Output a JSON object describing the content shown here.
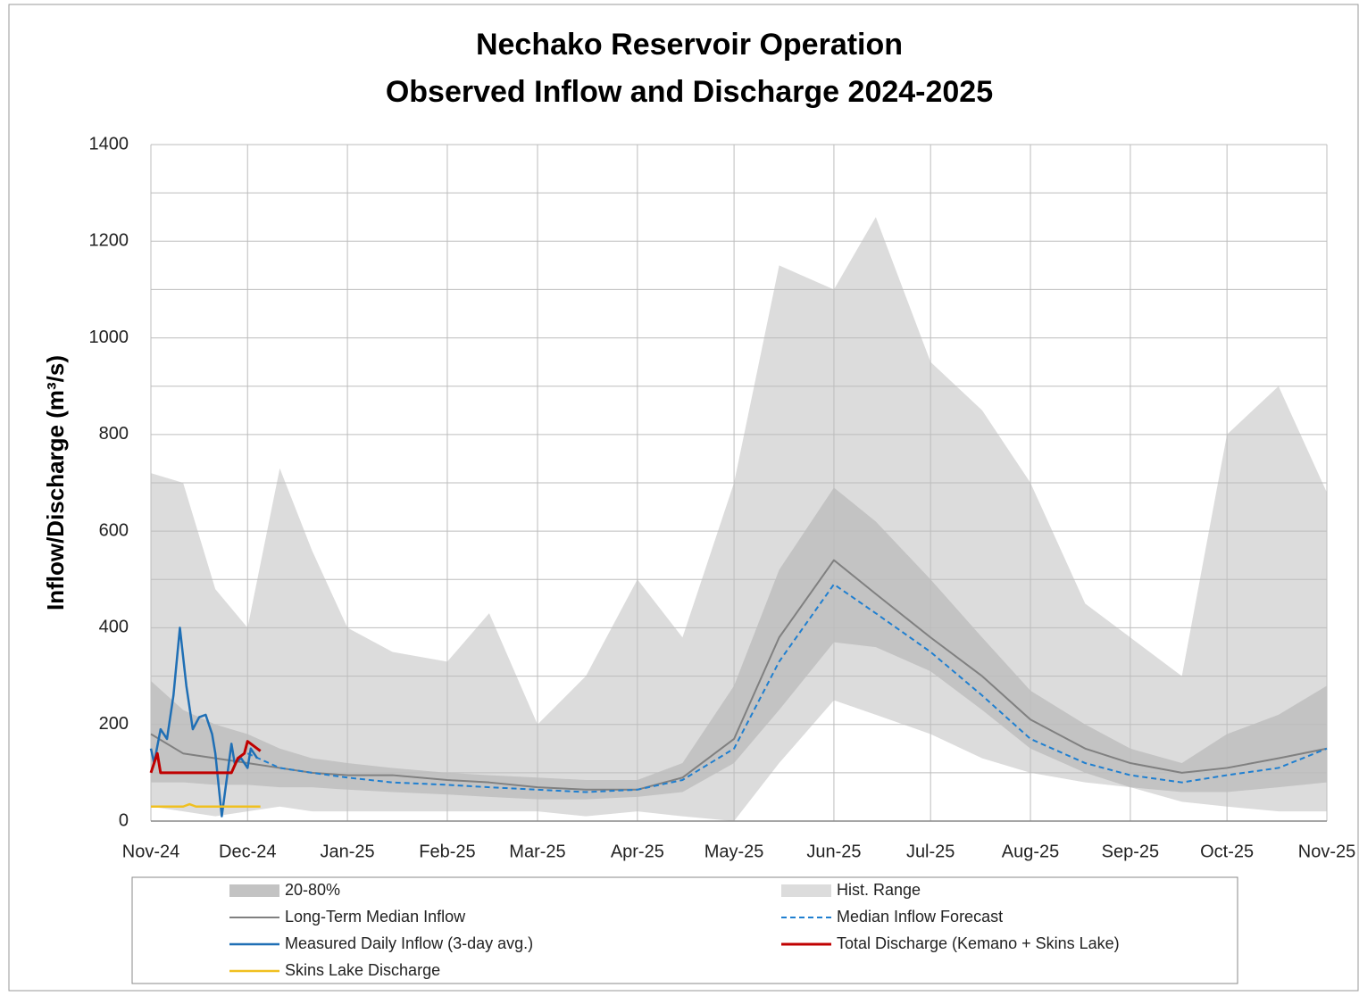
{
  "chart_data": {
    "type": "line",
    "title": "Nechako Reservoir Operation",
    "subtitle": "Observed Inflow and Discharge 2024-2025",
    "y_label": "Inflow/Discharge (m³/s)",
    "xlim": [
      0,
      365
    ],
    "xticks": [
      {
        "value": 0,
        "label": "Nov-24"
      },
      {
        "value": 30,
        "label": "Dec-24"
      },
      {
        "value": 61,
        "label": "Jan-25"
      },
      {
        "value": 92,
        "label": "Feb-25"
      },
      {
        "value": 120,
        "label": "Mar-25"
      },
      {
        "value": 151,
        "label": "Apr-25"
      },
      {
        "value": 181,
        "label": "May-25"
      },
      {
        "value": 212,
        "label": "Jun-25"
      },
      {
        "value": 242,
        "label": "Jul-25"
      },
      {
        "value": 273,
        "label": "Aug-25"
      },
      {
        "value": 304,
        "label": "Sep-25"
      },
      {
        "value": 334,
        "label": "Oct-25"
      },
      {
        "value": 365,
        "label": "Nov-25"
      }
    ],
    "ylim": [
      0,
      1400
    ],
    "yticks": [
      0,
      200,
      400,
      600,
      800,
      1000,
      1200,
      1400
    ],
    "y_minor_ticks": [
      100,
      300,
      500,
      700,
      900,
      1100,
      1300
    ],
    "grid": true,
    "legend": "bottom",
    "series": [
      {
        "name": "20-80%",
        "style": "band",
        "color": "#c3c3c3",
        "x": [
          0,
          10,
          20,
          30,
          40,
          50,
          61,
          75,
          92,
          105,
          120,
          135,
          151,
          165,
          181,
          195,
          212,
          225,
          242,
          258,
          273,
          290,
          304,
          320,
          334,
          350,
          365
        ],
        "upper": [
          290,
          230,
          200,
          180,
          150,
          130,
          120,
          110,
          100,
          95,
          90,
          85,
          85,
          120,
          280,
          520,
          690,
          620,
          500,
          380,
          270,
          200,
          150,
          120,
          180,
          220,
          280
        ],
        "lower": [
          80,
          80,
          75,
          75,
          70,
          70,
          65,
          60,
          55,
          50,
          45,
          45,
          50,
          60,
          120,
          230,
          370,
          360,
          310,
          230,
          150,
          100,
          70,
          60,
          60,
          70,
          80
        ]
      },
      {
        "name": "Hist. Range",
        "style": "band",
        "color": "#dcdcdc",
        "x": [
          0,
          10,
          20,
          30,
          40,
          50,
          61,
          75,
          92,
          105,
          120,
          135,
          151,
          165,
          181,
          195,
          212,
          225,
          242,
          258,
          273,
          290,
          304,
          320,
          334,
          350,
          365
        ],
        "upper": [
          720,
          700,
          480,
          400,
          730,
          560,
          400,
          350,
          330,
          430,
          200,
          300,
          500,
          380,
          700,
          1150,
          1100,
          1250,
          950,
          850,
          700,
          450,
          380,
          300,
          800,
          900,
          680
        ],
        "lower": [
          30,
          20,
          10,
          20,
          30,
          20,
          20,
          20,
          20,
          20,
          20,
          10,
          20,
          10,
          0,
          120,
          250,
          220,
          180,
          130,
          100,
          80,
          70,
          40,
          30,
          20,
          20
        ]
      },
      {
        "name": "Long-Term Median Inflow",
        "style": "line",
        "color": "#808080",
        "width": 2,
        "x": [
          0,
          10,
          20,
          30,
          40,
          50,
          61,
          75,
          92,
          105,
          120,
          135,
          151,
          165,
          181,
          195,
          212,
          225,
          242,
          258,
          273,
          290,
          304,
          320,
          334,
          350,
          365
        ],
        "values": [
          180,
          140,
          130,
          120,
          110,
          100,
          95,
          95,
          85,
          80,
          70,
          65,
          65,
          90,
          170,
          380,
          540,
          470,
          380,
          300,
          210,
          150,
          120,
          100,
          110,
          130,
          150
        ]
      },
      {
        "name": "Median Inflow Forecast",
        "style": "dashed",
        "color": "#1f7fd0",
        "width": 2,
        "x": [
          30,
          40,
          50,
          61,
          75,
          92,
          105,
          120,
          135,
          151,
          165,
          181,
          195,
          212,
          225,
          242,
          258,
          273,
          290,
          304,
          320,
          334,
          350,
          365
        ],
        "values": [
          140,
          110,
          100,
          90,
          80,
          75,
          70,
          65,
          60,
          65,
          85,
          150,
          330,
          490,
          430,
          350,
          260,
          170,
          120,
          95,
          80,
          95,
          110,
          150
        ]
      },
      {
        "name": "Measured Daily Inflow (3-day avg.)",
        "style": "line",
        "color": "#1f6fb5",
        "width": 2.5,
        "x": [
          0,
          1,
          3,
          5,
          7,
          9,
          11,
          13,
          15,
          17,
          19,
          20,
          22,
          24,
          25,
          26,
          28,
          30,
          31,
          33
        ],
        "values": [
          150,
          120,
          190,
          170,
          260,
          400,
          280,
          190,
          215,
          220,
          180,
          140,
          10,
          110,
          160,
          120,
          130,
          110,
          150,
          130
        ]
      },
      {
        "name": "Total Discharge (Kemano + Skins Lake)",
        "style": "line",
        "color": "#c00000",
        "width": 3,
        "x": [
          0,
          2,
          3,
          25,
          27,
          29,
          30,
          32,
          33,
          34
        ],
        "values": [
          100,
          140,
          100,
          100,
          130,
          140,
          165,
          155,
          150,
          145
        ]
      },
      {
        "name": "Skins Lake Discharge",
        "style": "line",
        "color": "#f0c020",
        "width": 2.5,
        "x": [
          0,
          10,
          12,
          14,
          34
        ],
        "values": [
          30,
          30,
          35,
          30,
          30
        ]
      }
    ]
  }
}
